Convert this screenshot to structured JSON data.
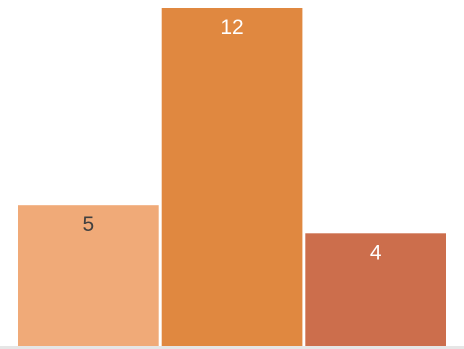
{
  "chart_data": {
    "type": "bar",
    "categories": [
      "",
      "",
      ""
    ],
    "values": [
      5,
      12,
      4
    ],
    "data_labels": [
      "5",
      "12",
      "4"
    ],
    "colors": [
      "#F0AA78",
      "#E08840",
      "#CC6E4C"
    ],
    "label_colors": [
      "#404040",
      "#ffffff",
      "#ffffff"
    ],
    "baseline_color": "#E6E6E6",
    "ylim": [
      0,
      12
    ],
    "title": "",
    "xlabel": "",
    "ylabel": "",
    "grid": false,
    "legend": "none"
  }
}
